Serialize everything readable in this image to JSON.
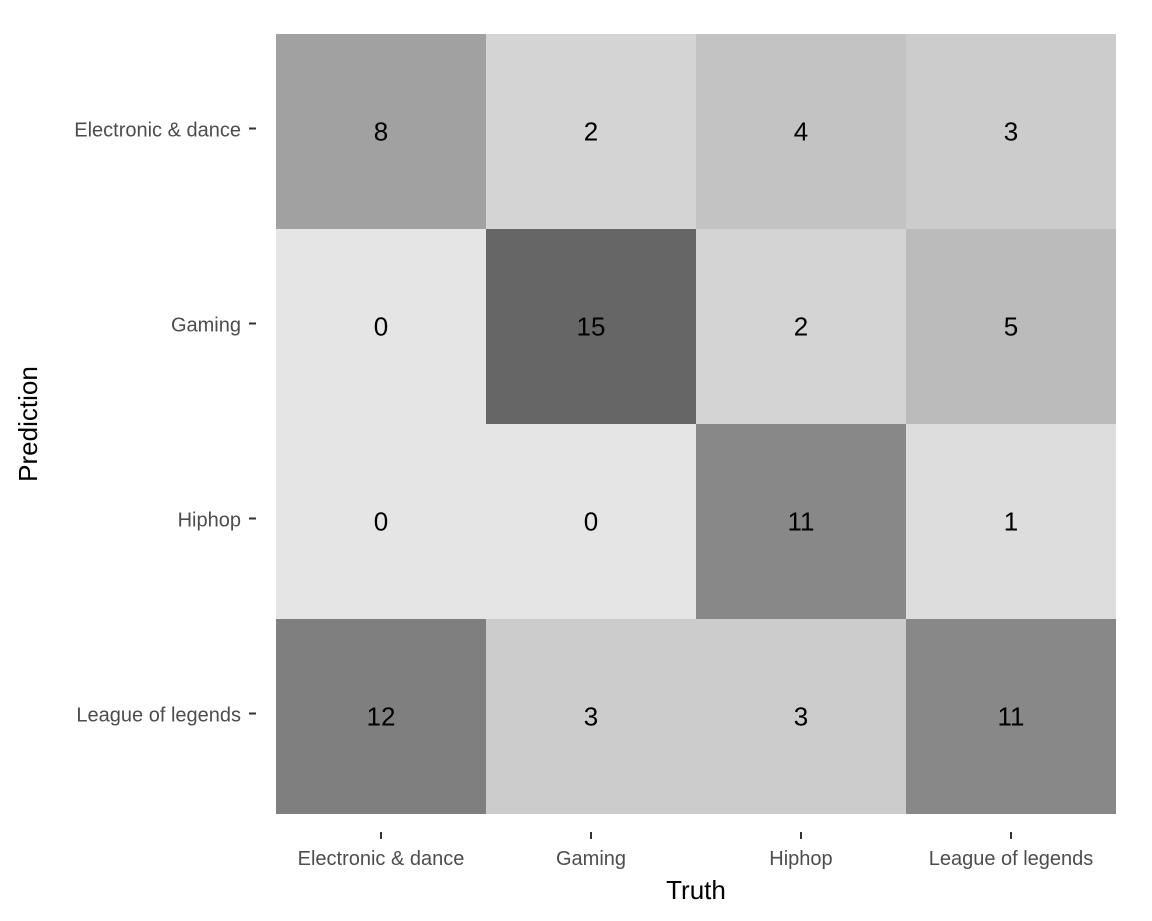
{
  "chart_data": {
    "type": "heatmap",
    "title": "",
    "xlabel": "Truth",
    "ylabel": "Prediction",
    "x_categories": [
      "Electronic & dance",
      "Gaming",
      "Hiphop",
      "League of legends"
    ],
    "y_categories": [
      "Electronic & dance",
      "Gaming",
      "Hiphop",
      "League of legends"
    ],
    "values": [
      [
        8,
        2,
        4,
        3
      ],
      [
        0,
        15,
        2,
        5
      ],
      [
        0,
        0,
        11,
        1
      ],
      [
        12,
        3,
        3,
        11
      ]
    ],
    "value_range": [
      0,
      15
    ],
    "colors": {
      "low": "#e5e5e5",
      "high": "#666666",
      "text": "#000000",
      "tick_text": "#4d4d4d",
      "background": "#ffffff"
    },
    "grid": false,
    "legend": "none"
  }
}
